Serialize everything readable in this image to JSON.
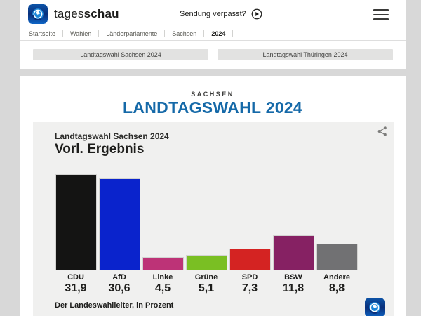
{
  "header": {
    "brand_regular": "tages",
    "brand_bold": "schau",
    "sendung_verpasst_label": "Sendung verpasst?",
    "breadcrumb": [
      "Startseite",
      "Wahlen",
      "Länderparlamente",
      "Sachsen",
      "2024"
    ]
  },
  "nav_buttons": [
    {
      "label": "Landtagswahl Sachsen 2024"
    },
    {
      "label": "Landtagswahl Thüringen 2024"
    }
  ],
  "page": {
    "kicker": "SACHSEN",
    "title": "LANDTAGSWAHL 2024"
  },
  "chart_card": {
    "subtitle": "Landtagswahl Sachsen 2024",
    "title": "Vorl. Ergebnis",
    "source": "Der Landeswahlleiter, in Prozent"
  },
  "chart_data": {
    "type": "bar",
    "title": "Vorl. Ergebnis",
    "subtitle": "Landtagswahl Sachsen 2024",
    "categories": [
      "CDU",
      "AfD",
      "Linke",
      "Grüne",
      "SPD",
      "BSW",
      "Andere"
    ],
    "values": [
      31.9,
      30.6,
      4.5,
      5.1,
      7.3,
      11.8,
      8.8
    ],
    "value_labels": [
      "31,9",
      "30,6",
      "4,5",
      "5,1",
      "7,3",
      "11,8",
      "8,8"
    ],
    "bar_colors": [
      "#141413",
      "#0a23cc",
      "#bd3377",
      "#7abf23",
      "#d42322",
      "#862163",
      "#717173"
    ],
    "unit": "Prozent",
    "ylim": [
      0,
      33
    ],
    "grid": false,
    "legend": false,
    "source": "Der Landeswahlleiter, in Prozent"
  },
  "theme": {
    "page_bg": "#d8d8d8",
    "surface": "#ffffff",
    "card_bg": "#f0f0ef",
    "title_blue": "#1569a8",
    "text_dark": "#1d1d1b",
    "button_bg": "#e2e2e1"
  }
}
